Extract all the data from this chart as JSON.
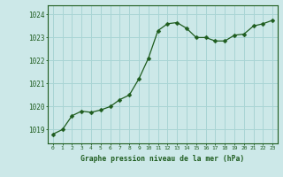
{
  "x": [
    0,
    1,
    2,
    3,
    4,
    5,
    6,
    7,
    8,
    9,
    10,
    11,
    12,
    13,
    14,
    15,
    16,
    17,
    18,
    19,
    20,
    21,
    22,
    23
  ],
  "y": [
    1018.8,
    1019.0,
    1019.6,
    1019.8,
    1019.75,
    1019.85,
    1020.0,
    1020.3,
    1020.5,
    1021.2,
    1022.1,
    1023.3,
    1023.6,
    1023.65,
    1023.4,
    1023.0,
    1023.0,
    1022.85,
    1022.85,
    1023.1,
    1023.15,
    1023.5,
    1023.6,
    1023.75
  ],
  "line_color": "#1e5c1e",
  "marker": "D",
  "marker_size": 2.5,
  "bg_color": "#cce8e8",
  "grid_color": "#a8d4d4",
  "axis_color": "#1e5c1e",
  "text_color": "#1e5c1e",
  "xlabel": "Graphe pression niveau de la mer (hPa)",
  "yticks": [
    1019,
    1020,
    1021,
    1022,
    1023,
    1024
  ],
  "xticks": [
    0,
    1,
    2,
    3,
    4,
    5,
    6,
    7,
    8,
    9,
    10,
    11,
    12,
    13,
    14,
    15,
    16,
    17,
    18,
    19,
    20,
    21,
    22,
    23
  ],
  "ylim": [
    1018.4,
    1024.4
  ],
  "xlim": [
    -0.5,
    23.5
  ]
}
